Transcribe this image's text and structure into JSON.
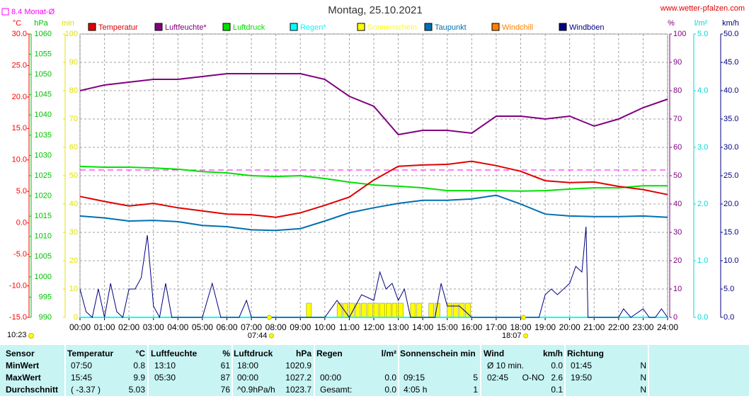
{
  "chart_data": {
    "type": "line",
    "title": "Montag, 25.10.2021",
    "source": "www.wetter-pfalzen.com",
    "time": "10:23",
    "monthly_mean": {
      "label": "8.4 Monat-Ø",
      "value": 8.4,
      "color": "#ff00ff",
      "axis": 0
    },
    "axes": [
      {
        "title": "°C",
        "color": "#ff0000",
        "lim": [
          -15,
          30
        ],
        "ticks": [
          {
            "value": 30,
            "label": "30.0"
          },
          {
            "value": 25,
            "label": "25.0"
          },
          {
            "value": 20,
            "label": "20.0"
          },
          {
            "value": 15,
            "label": "15.0"
          },
          {
            "value": 10,
            "label": "10.0"
          },
          {
            "value": 5,
            "label": "5.0"
          },
          {
            "value": 0,
            "label": "0.0"
          },
          {
            "value": -5,
            "label": "-5.0"
          },
          {
            "value": -10,
            "label": "-10.0"
          },
          {
            "value": -15,
            "label": "-15.0"
          }
        ]
      },
      {
        "title": "hPa",
        "color": "#00c000",
        "lim": [
          990,
          1060
        ],
        "ticks": [
          1060,
          1055,
          1050,
          1045,
          1040,
          1035,
          1030,
          1025,
          1020,
          1015,
          1010,
          1005,
          1000,
          995,
          990
        ]
      },
      {
        "title": "min",
        "color": "#e0e000",
        "lim": [
          0,
          100
        ],
        "ticks": [
          100,
          90,
          80,
          70,
          60,
          50,
          40,
          30,
          20,
          10,
          0
        ]
      },
      {
        "title": "%",
        "color": "#800080",
        "lim": [
          0,
          100
        ],
        "ticks": [
          100,
          90,
          80,
          70,
          60,
          50,
          40,
          30,
          20,
          10,
          0
        ]
      },
      {
        "title": "l/m²",
        "color": "#00d8d8",
        "lim": [
          0,
          5
        ],
        "ticks": [
          {
            "value": 5,
            "label": "5.0"
          },
          {
            "value": 4,
            "label": "4.0"
          },
          {
            "value": 3,
            "label": "3.0"
          },
          {
            "value": 2,
            "label": "2.0"
          },
          {
            "value": 1,
            "label": "1.0"
          },
          {
            "value": 0,
            "label": "0.0"
          }
        ]
      },
      {
        "title": "km/h",
        "color": "#000080",
        "lim": [
          0,
          50
        ],
        "ticks": [
          {
            "value": 50,
            "label": "50.0"
          },
          {
            "value": 45,
            "label": "45.0"
          },
          {
            "value": 40,
            "label": "40.0"
          },
          {
            "value": 35,
            "label": "35.0"
          },
          {
            "value": 30,
            "label": "30.0"
          },
          {
            "value": 25,
            "label": "25.0"
          },
          {
            "value": 20,
            "label": "20.0"
          },
          {
            "value": 15,
            "label": "15.0"
          },
          {
            "value": 10,
            "label": "10.0"
          },
          {
            "value": 5,
            "label": "5.0"
          },
          {
            "value": 0,
            "label": "0.0"
          }
        ]
      }
    ],
    "xlim": [
      0,
      24
    ],
    "xticks": [
      {
        "value": 0,
        "label": "00:00"
      },
      {
        "value": 1,
        "label": "01:00"
      },
      {
        "value": 2,
        "label": "02:00"
      },
      {
        "value": 3,
        "label": "03:00"
      },
      {
        "value": 4,
        "label": "04:00"
      },
      {
        "value": 5,
        "label": "05:00"
      },
      {
        "value": 6,
        "label": "06:00"
      },
      {
        "value": 7,
        "label": "07:00"
      },
      {
        "value": 8,
        "label": "08:00"
      },
      {
        "value": 9,
        "label": "09:00"
      },
      {
        "value": 10,
        "label": "10:00"
      },
      {
        "value": 11,
        "label": "11:00"
      },
      {
        "value": 12,
        "label": "12:00"
      },
      {
        "value": 13,
        "label": "13:00"
      },
      {
        "value": 14,
        "label": "14:00"
      },
      {
        "value": 15,
        "label": "15:00"
      },
      {
        "value": 16,
        "label": "16:00"
      },
      {
        "value": 17,
        "label": "17:00"
      },
      {
        "value": 18,
        "label": "18:00"
      },
      {
        "value": 19,
        "label": "19:00"
      },
      {
        "value": 20,
        "label": "20:00"
      },
      {
        "value": 21,
        "label": "21:00"
      },
      {
        "value": 22,
        "label": "22:00"
      },
      {
        "value": 23,
        "label": "23:00"
      },
      {
        "value": 24,
        "label": "24:00"
      }
    ],
    "grid": true,
    "sun": [
      {
        "label": "07:44",
        "value": 7.733
      },
      {
        "label": "18:07",
        "value": 18.117
      }
    ],
    "x": [
      0,
      1,
      2,
      3,
      4,
      5,
      6,
      7,
      8,
      9,
      10,
      11,
      12,
      13,
      14,
      15,
      16,
      17,
      18,
      19,
      20,
      21,
      22,
      23,
      24
    ],
    "series": [
      {
        "name": "Temperatur",
        "color": "#e00000",
        "axis": 0,
        "values": [
          4.2,
          3.4,
          2.7,
          3.1,
          2.4,
          1.9,
          1.4,
          1.3,
          0.9,
          1.6,
          2.8,
          4.1,
          6.8,
          9.0,
          9.2,
          9.3,
          9.8,
          9.1,
          8.2,
          6.7,
          6.4,
          6.5,
          5.8,
          5.3,
          4.5
        ]
      },
      {
        "name": "Luftfeuchte*",
        "color": "#800080",
        "axis": 3,
        "values": [
          80,
          82,
          83,
          84,
          84,
          85,
          86,
          86,
          86,
          86,
          84,
          78,
          74.5,
          64.5,
          66,
          66,
          65,
          71,
          71,
          70,
          71,
          67.5,
          70,
          74,
          77
        ]
      },
      {
        "name": "Luftdruck",
        "color": "#00e000",
        "axis": 1,
        "values": [
          1027.3,
          1027.1,
          1027.1,
          1026.9,
          1026.6,
          1026.0,
          1025.7,
          1025.0,
          1024.8,
          1025.0,
          1024.3,
          1023.4,
          1022.7,
          1022.4,
          1022.0,
          1021.3,
          1021.3,
          1021.3,
          1021.2,
          1021.3,
          1021.7,
          1022.0,
          1022.0,
          1022.5,
          1022.5
        ]
      },
      {
        "name": "Regen*",
        "color": "#00ffff",
        "axis": 4,
        "values": [
          0,
          0,
          0,
          0,
          0,
          0,
          0,
          0,
          0,
          0,
          0,
          0,
          0,
          0,
          0,
          0,
          0,
          0,
          0,
          0,
          0,
          0,
          0,
          0,
          0
        ]
      },
      {
        "name": "Sonnenschein",
        "color": "#ffff00",
        "axis": 2,
        "style": "bar",
        "x": [
          9.25,
          10.5,
          10.75,
          11,
          11.25,
          11.5,
          11.75,
          12,
          12.25,
          12.5,
          12.75,
          13,
          13.5,
          13.75,
          14.25,
          14.5,
          15,
          15.25,
          15.5,
          15.75
        ],
        "values": [
          5,
          5,
          5,
          5,
          5,
          5,
          5,
          5,
          5,
          5,
          5,
          5,
          5,
          5,
          5,
          5,
          5,
          5,
          5,
          5
        ]
      },
      {
        "name": "Taupunkt",
        "color": "#0070b0",
        "axis": 0,
        "values": [
          1.1,
          0.8,
          0.3,
          0.4,
          0.2,
          -0.4,
          -0.6,
          -1.1,
          -1.2,
          -0.9,
          0.3,
          1.6,
          2.4,
          3.1,
          3.6,
          3.6,
          3.8,
          4.4,
          3.0,
          1.4,
          1.1,
          1.0,
          1.0,
          1.1,
          0.9
        ]
      },
      {
        "name": "Windchill",
        "color": "#ff8000",
        "axis": 0
      },
      {
        "name": "Windböen",
        "color": "#000080",
        "axis": 5,
        "x": [
          0,
          0.25,
          0.5,
          0.75,
          1,
          1.25,
          1.5,
          1.75,
          2,
          2.25,
          2.5,
          2.75,
          3,
          3.25,
          3.5,
          3.75,
          4,
          5,
          5.4,
          5.75,
          6,
          6.5,
          6.8,
          7,
          10,
          10.5,
          11,
          11.5,
          12,
          12.25,
          12.5,
          12.75,
          13,
          13.25,
          13.5,
          14,
          14.5,
          14.75,
          15,
          15.5,
          16,
          18.75,
          19,
          19.25,
          19.5,
          20,
          20.25,
          20.5,
          20.67,
          20.75,
          21,
          22,
          22.2,
          22.5,
          23,
          23.25,
          23.5,
          23.75,
          24
        ],
        "values": [
          5,
          1,
          0,
          5,
          0,
          6,
          1,
          0,
          5,
          5,
          7,
          14.5,
          2,
          0,
          6,
          0,
          0,
          0,
          6,
          0,
          0,
          0,
          3,
          0,
          0,
          3,
          0,
          4,
          3,
          8,
          5,
          6,
          3,
          5,
          0,
          0,
          0,
          6,
          2,
          2,
          0,
          0,
          4,
          5,
          4,
          6,
          9,
          8,
          16,
          0,
          0,
          0,
          1.5,
          0,
          1.5,
          0,
          0,
          1.5,
          0
        ]
      }
    ]
  },
  "table": {
    "header": [
      [
        "Sensor"
      ],
      [
        "Temperatur",
        "°C"
      ],
      [
        "Luftfeuchte",
        "%"
      ],
      [
        "Luftdruck",
        "hPa"
      ],
      [
        "Regen",
        "l/m²"
      ],
      [
        "Sonnenschein min"
      ],
      [
        "Wind",
        "km/h"
      ],
      [
        "Richtung"
      ]
    ],
    "rows": [
      {
        "label": "MinWert",
        "cells": [
          [
            "07:50",
            "0.8"
          ],
          [
            "13:10",
            "61"
          ],
          [
            "18:00",
            "1020.9"
          ],
          null,
          null,
          [
            "Ø 10 min.",
            "0.0"
          ],
          [
            "01:45",
            "N"
          ]
        ]
      },
      {
        "label": "MaxWert",
        "cells": [
          [
            "15:45",
            "9.9"
          ],
          [
            "05:30",
            "87"
          ],
          [
            "00:00",
            "1027.2"
          ],
          [
            "00:00",
            "0.0"
          ],
          [
            "09:15",
            "5"
          ],
          [
            "02:45",
            "O-NO",
            "2.6"
          ],
          [
            "19:50",
            "N"
          ]
        ]
      },
      {
        "label": "Durchschnitt",
        "cells": [
          [
            "( -3.37 )",
            "5.03"
          ],
          [
            "76"
          ],
          [
            "^0.9hPa/h",
            "1023.7"
          ],
          [
            "Gesamt:",
            "0.0"
          ],
          [
            "4:05 h",
            "1"
          ],
          [
            "0.1"
          ],
          [
            "N"
          ]
        ]
      }
    ]
  }
}
